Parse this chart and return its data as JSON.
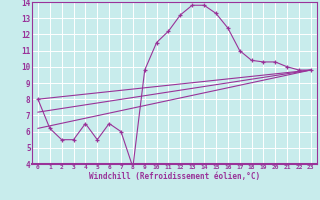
{
  "xlabel": "Windchill (Refroidissement éolien,°C)",
  "background_color": "#c8ecec",
  "line_color": "#993399",
  "grid_color": "#ffffff",
  "spine_color": "#993399",
  "xlim": [
    -0.5,
    23.5
  ],
  "ylim": [
    4,
    14
  ],
  "xticks": [
    0,
    1,
    2,
    3,
    4,
    5,
    6,
    7,
    8,
    9,
    10,
    11,
    12,
    13,
    14,
    15,
    16,
    17,
    18,
    19,
    20,
    21,
    22,
    23
  ],
  "yticks": [
    4,
    5,
    6,
    7,
    8,
    9,
    10,
    11,
    12,
    13,
    14
  ],
  "curve1_x": [
    0,
    1,
    2,
    3,
    4,
    5,
    6,
    7,
    8,
    9,
    10,
    11,
    12,
    13,
    14,
    15,
    16,
    17,
    18,
    19,
    20,
    21,
    22,
    23
  ],
  "curve1_y": [
    8.0,
    6.2,
    5.5,
    5.5,
    6.5,
    5.5,
    6.5,
    6.0,
    3.8,
    9.8,
    11.5,
    12.2,
    13.2,
    13.8,
    13.8,
    13.3,
    12.4,
    11.0,
    10.4,
    10.3,
    10.3,
    10.0,
    9.8,
    9.8
  ],
  "line1_x": [
    0,
    23
  ],
  "line1_y": [
    8.0,
    9.8
  ],
  "line2_x": [
    0,
    23
  ],
  "line2_y": [
    7.2,
    9.8
  ],
  "line3_x": [
    0,
    23
  ],
  "line3_y": [
    6.2,
    9.8
  ]
}
